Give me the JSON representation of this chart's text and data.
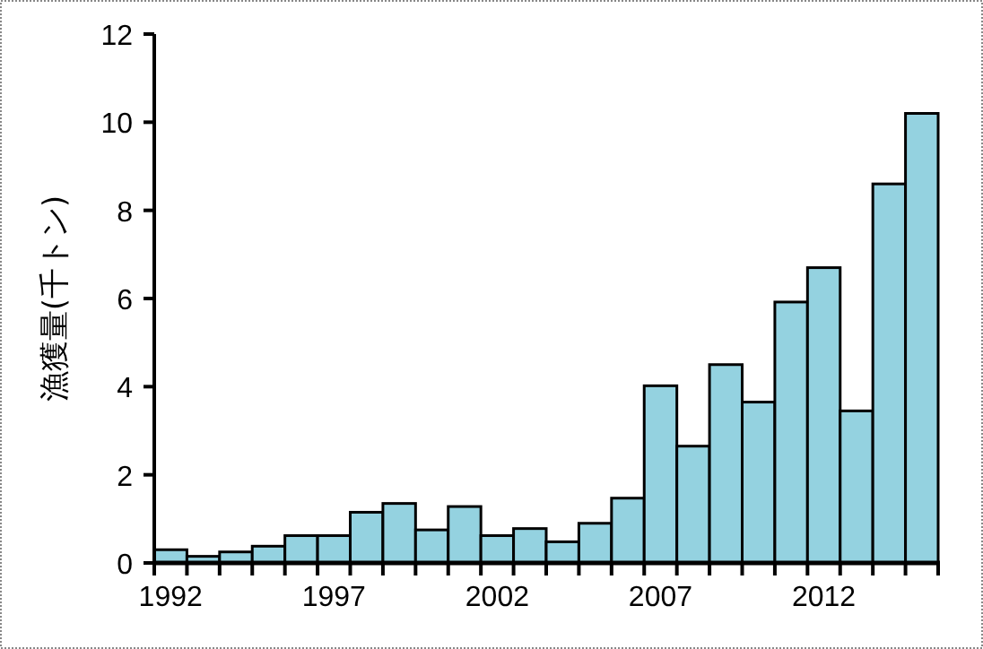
{
  "chart_data": {
    "type": "bar",
    "ylabel": "漁獲量(千トン)",
    "categories": [
      "1992",
      null,
      null,
      null,
      null,
      "1997",
      null,
      null,
      null,
      null,
      "2002",
      null,
      null,
      null,
      null,
      "2007",
      null,
      null,
      null,
      null,
      "2012",
      null,
      null,
      null
    ],
    "values": [
      0.3,
      0.15,
      0.25,
      0.38,
      0.62,
      0.62,
      1.15,
      1.35,
      0.75,
      1.28,
      0.62,
      0.78,
      0.48,
      0.9,
      1.47,
      4.02,
      2.65,
      4.5,
      3.65,
      5.92,
      6.7,
      3.45,
      8.6,
      10.2
    ],
    "color": "#94d2e0",
    "ylim": [
      0,
      12
    ],
    "yticks": [
      0,
      2,
      4,
      6,
      8,
      10,
      12
    ],
    "grid": false
  }
}
